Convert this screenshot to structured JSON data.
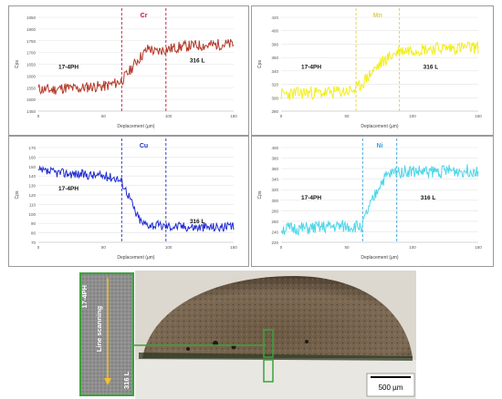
{
  "chart_data": [
    {
      "type": "line",
      "element": "Cr",
      "color": "#b33a2a",
      "marker_color": "#c8102e",
      "xlabel": "Deplacement (µm)",
      "ylabel": "Cps",
      "xlim": [
        0,
        150
      ],
      "ylim": [
        1450,
        1850
      ],
      "yticks": [
        1450,
        1500,
        1550,
        1600,
        1650,
        1700,
        1750,
        1800,
        1850
      ],
      "xticks": [
        0,
        50,
        100,
        150
      ],
      "markers": [
        64,
        98
      ],
      "region_labels": [
        {
          "text": "17-4PH",
          "side": "left"
        },
        {
          "text": "316 L",
          "side": "right"
        }
      ],
      "x": [
        0,
        10,
        20,
        30,
        40,
        50,
        60,
        64,
        70,
        75,
        80,
        85,
        90,
        95,
        100,
        110,
        120,
        130,
        140,
        150
      ],
      "values": [
        1545,
        1540,
        1550,
        1545,
        1555,
        1555,
        1570,
        1580,
        1620,
        1660,
        1690,
        1720,
        1700,
        1710,
        1715,
        1725,
        1730,
        1730,
        1735,
        1735
      ]
    },
    {
      "type": "line",
      "element": "Mn",
      "color": "#f2ee1e",
      "marker_color": "#e3d04a",
      "xlabel": "Deplacement (µm)",
      "ylabel": "Cps",
      "xlim": [
        0,
        150
      ],
      "ylim": [
        280,
        420
      ],
      "yticks": [
        280,
        300,
        320,
        340,
        360,
        380,
        400,
        420
      ],
      "xticks": [
        0,
        50,
        100,
        150
      ],
      "markers": [
        57,
        90
      ],
      "region_labels": [
        {
          "text": "17-4PH",
          "side": "left"
        },
        {
          "text": "316 L",
          "side": "right"
        }
      ],
      "x": [
        0,
        10,
        20,
        30,
        40,
        50,
        57,
        62,
        68,
        74,
        80,
        90,
        100,
        110,
        120,
        130,
        140,
        150
      ],
      "values": [
        305,
        306,
        308,
        307,
        308,
        310,
        312,
        322,
        336,
        348,
        358,
        370,
        372,
        373,
        374,
        374,
        375,
        375
      ]
    },
    {
      "type": "line",
      "element": "Cu",
      "color": "#1f2bd1",
      "marker_color": "#2030c0",
      "xlabel": "Deplacement (µm)",
      "ylabel": "Cps",
      "xlim": [
        0,
        150
      ],
      "ylim": [
        70,
        170
      ],
      "yticks": [
        70,
        80,
        90,
        100,
        110,
        120,
        130,
        140,
        150,
        160,
        170
      ],
      "xticks": [
        0,
        50,
        100,
        150
      ],
      "markers": [
        64,
        98
      ],
      "region_labels": [
        {
          "text": "17-4PH",
          "side": "left"
        },
        {
          "text": "316 L",
          "side": "right"
        }
      ],
      "x": [
        0,
        10,
        20,
        30,
        40,
        50,
        60,
        64,
        70,
        75,
        80,
        90,
        100,
        110,
        120,
        130,
        140,
        150
      ],
      "values": [
        145,
        144,
        143,
        142,
        141,
        140,
        138,
        134,
        118,
        100,
        90,
        88,
        87,
        87,
        86,
        86,
        86,
        86
      ]
    },
    {
      "type": "line",
      "element": "Ni",
      "color": "#4fd6e8",
      "marker_color": "#3aa0d8",
      "xlabel": "Deplacement (µm)",
      "ylabel": "Cps",
      "xlim": [
        0,
        150
      ],
      "ylim": [
        220,
        400
      ],
      "yticks": [
        220,
        240,
        260,
        280,
        300,
        320,
        340,
        360,
        380,
        400
      ],
      "xticks": [
        0,
        50,
        100,
        150
      ],
      "markers": [
        62,
        88
      ],
      "region_labels": [
        {
          "text": "17-4PH",
          "side": "left"
        },
        {
          "text": "316 L",
          "side": "right"
        }
      ],
      "x": [
        0,
        10,
        20,
        30,
        40,
        50,
        60,
        62,
        66,
        70,
        75,
        80,
        88,
        100,
        110,
        120,
        130,
        140,
        150
      ],
      "values": [
        245,
        246,
        246,
        248,
        250,
        250,
        250,
        252,
        280,
        300,
        330,
        345,
        355,
        355,
        354,
        355,
        356,
        356,
        357
      ]
    }
  ],
  "micrograph": {
    "left_strip_top_label": "17-4PH",
    "left_strip_bottom_label": "316 L",
    "line_label": "Line scanning",
    "scale_bar": "500 µm"
  }
}
